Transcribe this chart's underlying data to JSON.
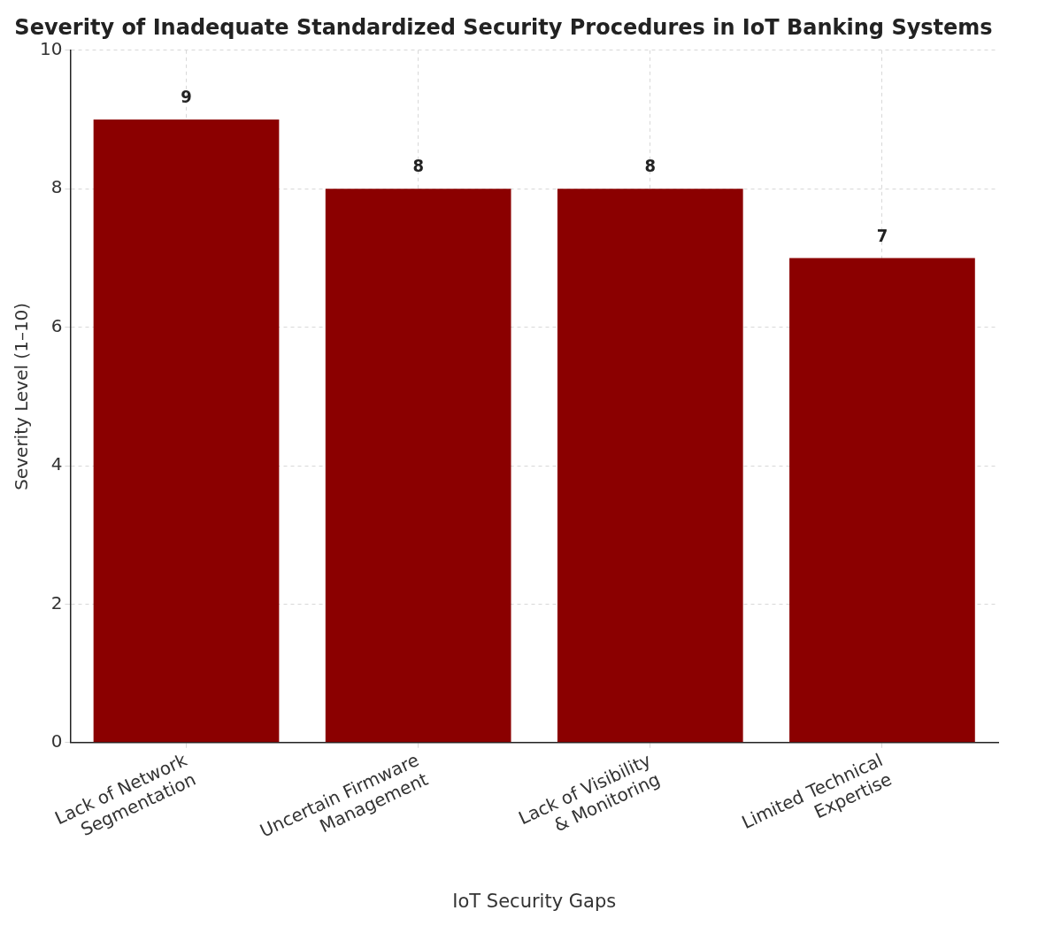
{
  "chart_data": {
    "type": "bar",
    "title": "Severity of Inadequate Standardized Security Procedures in IoT Banking Systems",
    "xlabel": "IoT Security Gaps",
    "ylabel": "Severity Level (1–10)",
    "categories": [
      "Lack of Network\nSegmentation",
      "Uncertain Firmware\nManagement",
      "Lack of Visibility\n& Monitoring",
      "Limited Technical\nExpertise"
    ],
    "values": [
      9,
      8,
      8,
      7
    ],
    "color": "#8b0000",
    "ylim": [
      0,
      10
    ],
    "yticks": [
      0,
      2,
      4,
      6,
      8,
      10
    ],
    "grid": true,
    "data_labels": true
  }
}
